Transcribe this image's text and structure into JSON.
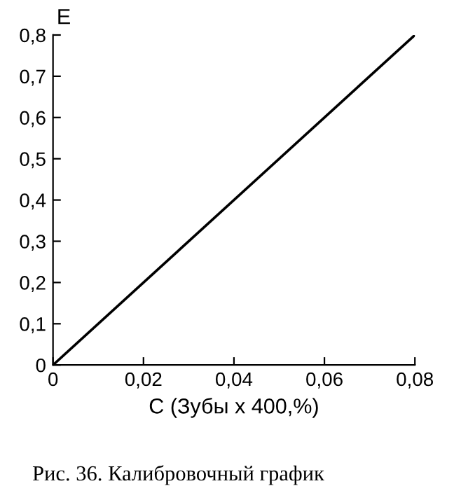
{
  "chart_data": {
    "type": "line",
    "xlabel": "С (Зубы х 400,%)",
    "ylabel": "E",
    "x": [
      0,
      0.08
    ],
    "series": [
      {
        "color": "#000000",
        "values": [
          0,
          0.8
        ]
      }
    ],
    "xlim": [
      0,
      0.08
    ],
    "ylim": [
      0,
      0.8
    ],
    "xticks": [
      0,
      {
        "value": 0.02,
        "label": "0,02"
      },
      {
        "value": 0.04,
        "label": "0,04"
      },
      {
        "value": 0.06,
        "label": "0,06"
      },
      {
        "value": 0.08,
        "label": "0,08"
      }
    ],
    "yticks": [
      0,
      {
        "value": 0.1,
        "label": "0,1"
      },
      {
        "value": 0.2,
        "label": "0,2"
      },
      {
        "value": 0.3,
        "label": "0,3"
      },
      {
        "value": 0.4,
        "label": "0,4"
      },
      {
        "value": 0.5,
        "label": "0,5"
      },
      {
        "value": 0.6,
        "label": "0,6"
      },
      {
        "value": 0.7,
        "label": "0,7"
      },
      {
        "value": 0.8,
        "label": "0,8"
      }
    ],
    "grid": false,
    "legend": false,
    "marker": "none",
    "line_style": "solid",
    "annotations": [
      "Рис. 36. Калибровочный график"
    ]
  }
}
